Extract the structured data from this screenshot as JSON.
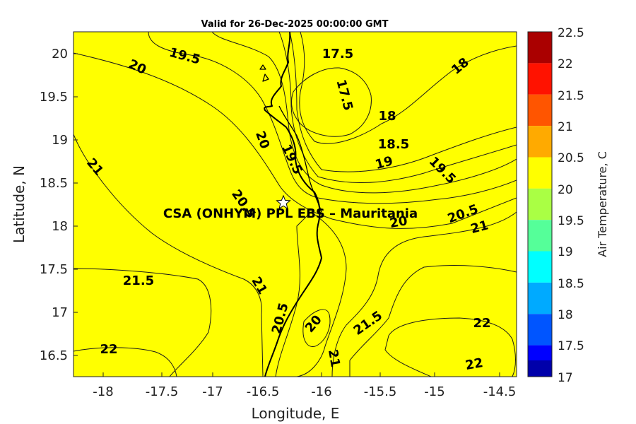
{
  "map": {
    "title": "Valid for 26-Dec-2025 00:00:00 GMT",
    "xlabel": "Longitude, E",
    "ylabel": "Latitude, N",
    "colorbar_label": "Air Temperature, C",
    "site_label": "CSA (ONHYM) PPL EBS  – Mauritania",
    "site_icon": "star-marker-icon",
    "x_ticks": [
      "-18",
      "-17.5",
      "-17",
      "-16.5",
      "-16",
      "-15.5",
      "-15",
      "-14.5"
    ],
    "y_ticks": [
      "20",
      "19.5",
      "19",
      "18.5",
      "18",
      "17.5",
      "17",
      "16.5"
    ],
    "colorbar_ticks": [
      "22.5",
      "22",
      "21.5",
      "21",
      "20.5",
      "20",
      "19.5",
      "19",
      "18.5",
      "18",
      "17.5",
      "17"
    ],
    "colorbar_colors": [
      "#aa0000",
      "#ff1200",
      "#ff5500",
      "#ffaa00",
      "#ffff00",
      "#aaff44",
      "#55ff99",
      "#00ffff",
      "#00aaff",
      "#0055ff",
      "#0000ff",
      "#0000aa"
    ],
    "contour_labels": [
      "19.5",
      "20",
      "17.5",
      "18",
      "17.5",
      "18",
      "18.5",
      "19",
      "19.5",
      "20",
      "19.5",
      "21",
      "20.5",
      "20",
      "20.5",
      "21",
      "21.5",
      "21",
      "20.5",
      "20",
      "21",
      "21.5",
      "22",
      "22",
      "22"
    ]
  }
}
